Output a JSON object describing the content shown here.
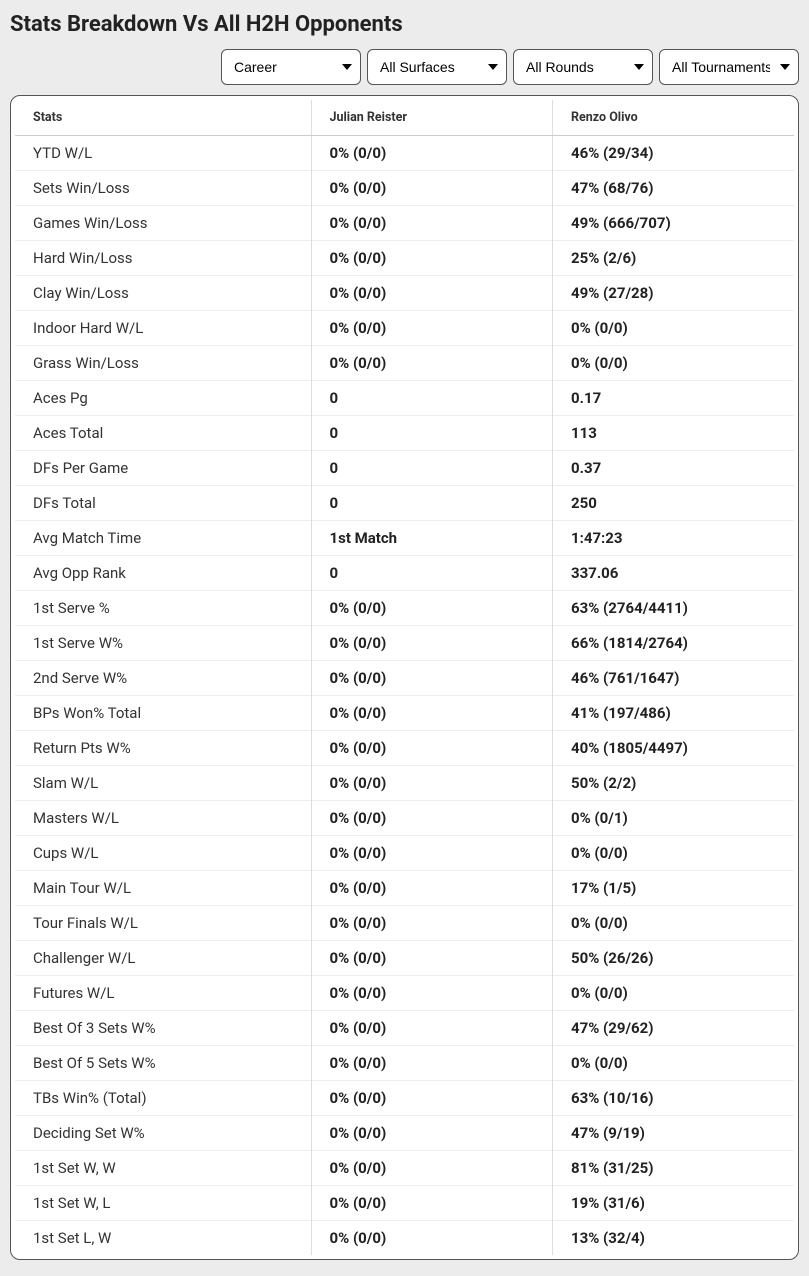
{
  "header": {
    "title": "Stats Breakdown Vs All H2H Opponents"
  },
  "filters": {
    "career": {
      "selected": "Career"
    },
    "surface": {
      "selected": "All Surfaces"
    },
    "round": {
      "selected": "All Rounds"
    },
    "tournament": {
      "selected": "All Tournaments"
    }
  },
  "table": {
    "columns": {
      "stats": "Stats",
      "player1": "Julian Reister",
      "player2": "Renzo Olivo"
    },
    "rows": [
      {
        "label": "YTD W/L",
        "p1": "0% (0/0)",
        "p2": "46% (29/34)"
      },
      {
        "label": "Sets Win/Loss",
        "p1": "0% (0/0)",
        "p2": "47% (68/76)"
      },
      {
        "label": "Games Win/Loss",
        "p1": "0% (0/0)",
        "p2": "49% (666/707)"
      },
      {
        "label": "Hard Win/Loss",
        "p1": "0% (0/0)",
        "p2": "25% (2/6)"
      },
      {
        "label": "Clay Win/Loss",
        "p1": "0% (0/0)",
        "p2": "49% (27/28)"
      },
      {
        "label": "Indoor Hard W/L",
        "p1": "0% (0/0)",
        "p2": "0% (0/0)"
      },
      {
        "label": "Grass Win/Loss",
        "p1": "0% (0/0)",
        "p2": "0% (0/0)"
      },
      {
        "label": "Aces Pg",
        "p1": "0",
        "p2": "0.17"
      },
      {
        "label": "Aces Total",
        "p1": "0",
        "p2": "113"
      },
      {
        "label": "DFs Per Game",
        "p1": "0",
        "p2": "0.37"
      },
      {
        "label": "DFs Total",
        "p1": "0",
        "p2": "250"
      },
      {
        "label": "Avg Match Time",
        "p1": "1st Match",
        "p2": "1:47:23"
      },
      {
        "label": "Avg Opp Rank",
        "p1": "0",
        "p2": "337.06"
      },
      {
        "label": "1st Serve %",
        "p1": "0% (0/0)",
        "p2": "63% (2764/4411)"
      },
      {
        "label": "1st Serve W%",
        "p1": "0% (0/0)",
        "p2": "66% (1814/2764)"
      },
      {
        "label": "2nd Serve W%",
        "p1": "0% (0/0)",
        "p2": "46% (761/1647)"
      },
      {
        "label": "BPs Won% Total",
        "p1": "0% (0/0)",
        "p2": "41% (197/486)"
      },
      {
        "label": "Return Pts W%",
        "p1": "0% (0/0)",
        "p2": "40% (1805/4497)"
      },
      {
        "label": "Slam W/L",
        "p1": "0% (0/0)",
        "p2": "50% (2/2)"
      },
      {
        "label": "Masters W/L",
        "p1": "0% (0/0)",
        "p2": "0% (0/1)"
      },
      {
        "label": "Cups W/L",
        "p1": "0% (0/0)",
        "p2": "0% (0/0)"
      },
      {
        "label": "Main Tour W/L",
        "p1": "0% (0/0)",
        "p2": "17% (1/5)"
      },
      {
        "label": "Tour Finals W/L",
        "p1": "0% (0/0)",
        "p2": "0% (0/0)"
      },
      {
        "label": "Challenger W/L",
        "p1": "0% (0/0)",
        "p2": "50% (26/26)"
      },
      {
        "label": "Futures W/L",
        "p1": "0% (0/0)",
        "p2": "0% (0/0)"
      },
      {
        "label": "Best Of 3 Sets W%",
        "p1": "0% (0/0)",
        "p2": "47% (29/62)"
      },
      {
        "label": "Best Of 5 Sets W%",
        "p1": "0% (0/0)",
        "p2": "0% (0/0)"
      },
      {
        "label": "TBs Win% (Total)",
        "p1": "0% (0/0)",
        "p2": "63% (10/16)"
      },
      {
        "label": "Deciding Set W%",
        "p1": "0% (0/0)",
        "p2": "47% (9/19)"
      },
      {
        "label": "1st Set W, W",
        "p1": "0% (0/0)",
        "p2": "81% (31/25)"
      },
      {
        "label": "1st Set W, L",
        "p1": "0% (0/0)",
        "p2": "19% (31/6)"
      },
      {
        "label": "1st Set L, W",
        "p1": "0% (0/0)",
        "p2": "13% (32/4)"
      }
    ]
  }
}
